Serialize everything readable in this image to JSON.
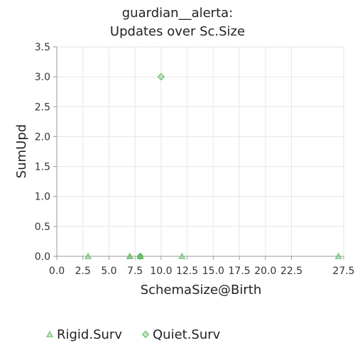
{
  "chart_data": {
    "type": "scatter",
    "title": [
      "guardian__alerta:",
      "Updates over Sc.Size"
    ],
    "xlabel": "SchemaSize@Birth",
    "ylabel": "SumUpd",
    "xlim": [
      0,
      27.5
    ],
    "ylim": [
      0,
      3.5
    ],
    "x_ticks": [
      "0.0",
      "2.5",
      "5.0",
      "7.5",
      "10.0",
      "12.5",
      "15.0",
      "17.5",
      "20.0",
      "22.5",
      "27.5"
    ],
    "y_ticks": [
      "0.0",
      "0.5",
      "1.0",
      "1.5",
      "2.0",
      "2.5",
      "3.0",
      "3.5"
    ],
    "grid": false,
    "legend_position": "bottom",
    "series": [
      {
        "name": "Rigid.Surv",
        "marker": "triangle",
        "color": "#5cb85c",
        "points": [
          [
            3,
            0
          ],
          [
            7,
            0
          ],
          [
            7,
            0
          ],
          [
            8,
            0
          ],
          [
            8,
            0
          ],
          [
            8,
            0
          ],
          [
            12,
            0
          ],
          [
            27,
            0
          ]
        ]
      },
      {
        "name": "Quiet.Surv",
        "marker": "diamond",
        "color": "#5cb85c",
        "points": [
          [
            8,
            0
          ],
          [
            10,
            3
          ]
        ]
      }
    ]
  }
}
